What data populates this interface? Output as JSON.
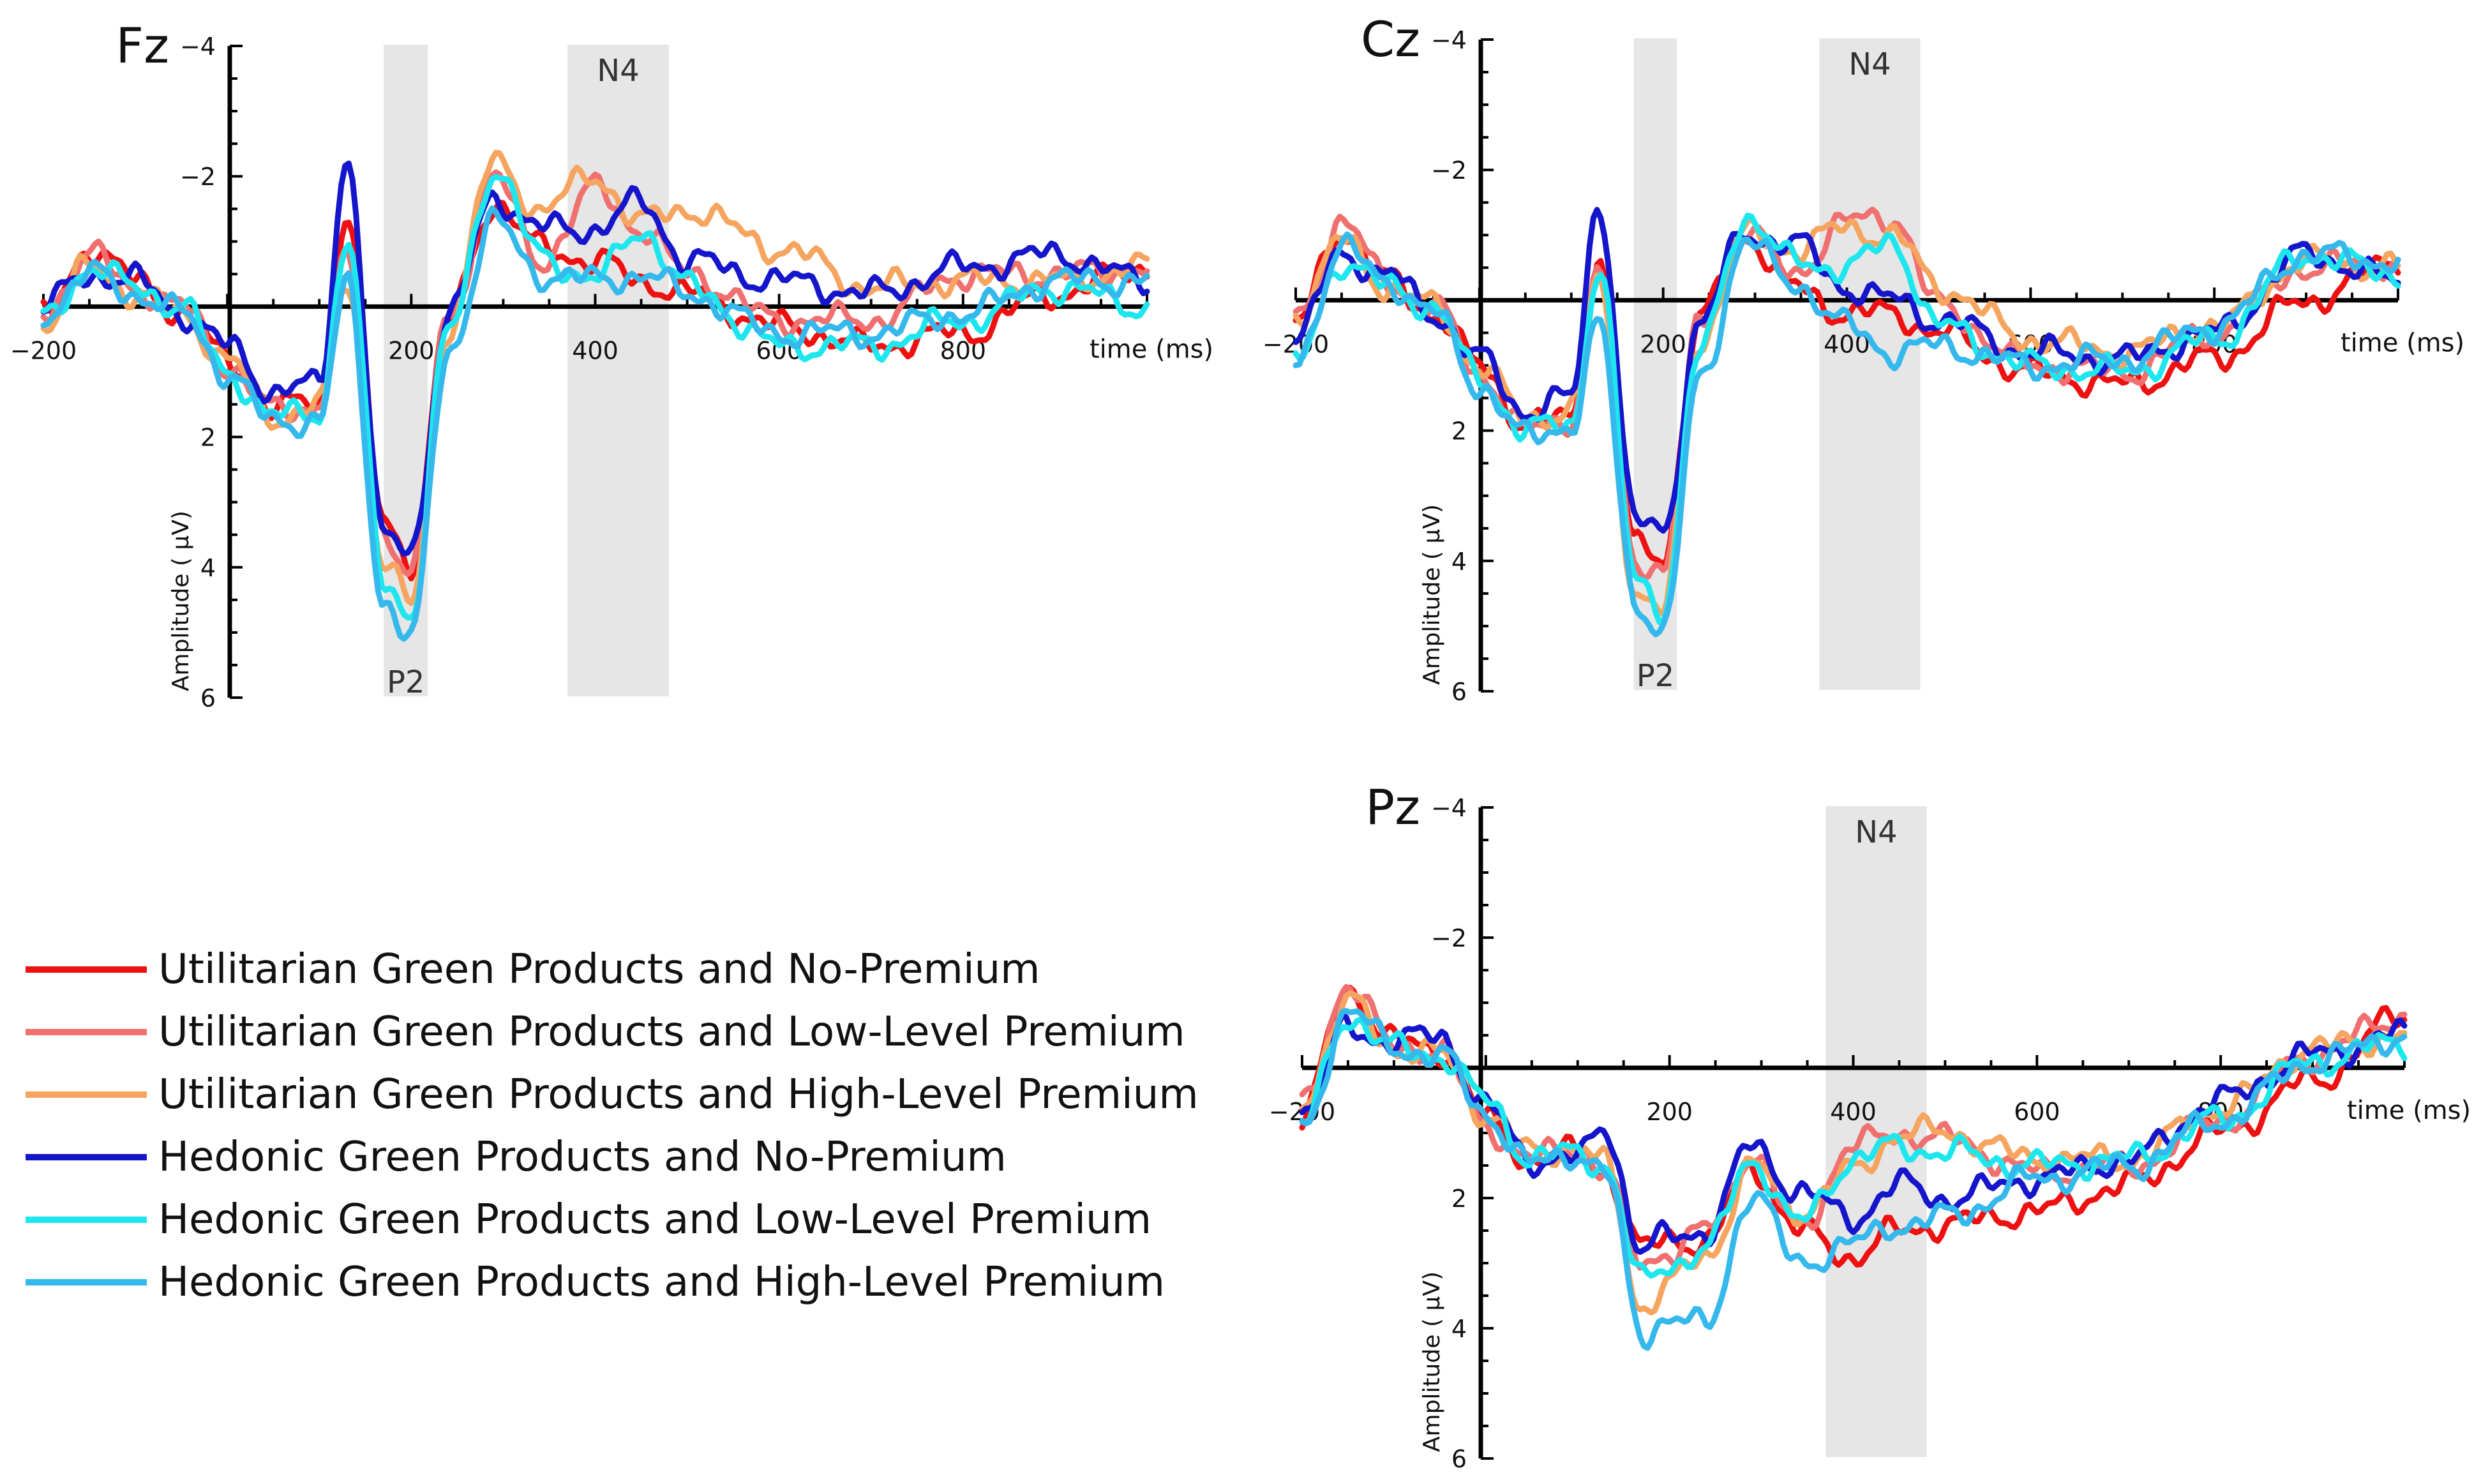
{
  "figure_title": "",
  "legend": [
    {
      "label": "Utilitarian Green Products and No-Premium",
      "color": "#ee1111"
    },
    {
      "label": "Utilitarian Green Products and Low-Level Premium",
      "color": "#f07070"
    },
    {
      "label": "Utilitarian Green Products and High-Level Premium",
      "color": "#f5a560"
    },
    {
      "label": "Hedonic Green Products and No-Premium",
      "color": "#1515cc"
    },
    {
      "label": "Hedonic Green Products and Low-Level Premium",
      "color": "#1ee6ee"
    },
    {
      "label": "Hedonic Green Products and High-Level Premium",
      "color": "#35b8ec"
    }
  ],
  "chart_data": [
    {
      "type": "line",
      "title": "Fz",
      "xlabel": "time (ms)",
      "ylabel": "Amplitude ( μV)",
      "xlim": [
        -200,
        1000
      ],
      "ylim": [
        -4,
        6
      ],
      "y_inverted": true,
      "x_ticks": [
        -200,
        200,
        400,
        600,
        800
      ],
      "y_ticks": [
        -4,
        -2,
        2,
        4,
        6
      ],
      "grid": false,
      "shaded_windows": [
        {
          "label": "P2",
          "x_start": 170,
          "x_end": 218,
          "label_position": "bottom"
        },
        {
          "label": "N4",
          "x_start": 370,
          "x_end": 480,
          "label_position": "top"
        }
      ],
      "x": [
        -200,
        -150,
        -100,
        -50,
        0,
        50,
        100,
        130,
        170,
        200,
        240,
        290,
        340,
        400,
        450,
        500,
        600,
        700,
        800,
        900,
        1000
      ],
      "series": [
        {
          "name": "Utilitarian Green Products and No-Premium",
          "values": [
            0.2,
            -0.9,
            -0.4,
            0.1,
            0.8,
            1.6,
            1.4,
            -1.4,
            3.3,
            3.9,
            0.2,
            -1.6,
            -0.9,
            -0.7,
            -0.4,
            -0.2,
            0.3,
            0.6,
            0.4,
            -0.2,
            -0.6
          ]
        },
        {
          "name": "Utilitarian Green Products and Low-Level Premium",
          "values": [
            0.1,
            -0.8,
            -0.3,
            0.0,
            0.9,
            1.6,
            1.5,
            -0.7,
            3.4,
            4.1,
            0.2,
            -2.0,
            -0.7,
            -1.8,
            -1.2,
            -0.5,
            0.2,
            0.2,
            -0.5,
            -0.5,
            -0.6
          ]
        },
        {
          "name": "Utilitarian Green Products and High-Level Premium",
          "values": [
            0.3,
            -0.6,
            -0.2,
            0.1,
            0.8,
            1.7,
            1.5,
            -0.4,
            3.9,
            4.6,
            0.3,
            -2.2,
            -1.5,
            -2.0,
            -1.3,
            -1.5,
            -0.9,
            -0.3,
            -0.4,
            -0.4,
            -0.6
          ]
        },
        {
          "name": "Hedonic Green Products and No-Premium",
          "values": [
            0.0,
            -0.5,
            -0.4,
            0.1,
            0.6,
            1.3,
            1.2,
            -2.3,
            3.6,
            3.7,
            0.2,
            -1.7,
            -1.2,
            -1.2,
            -1.6,
            -0.7,
            -0.4,
            -0.2,
            -0.6,
            -0.8,
            -0.4
          ]
        },
        {
          "name": "Hedonic Green Products and Low-Level Premium",
          "values": [
            0.2,
            -0.6,
            -0.3,
            0.0,
            1.0,
            1.7,
            1.6,
            -1.0,
            4.2,
            4.7,
            0.4,
            -2.1,
            -0.8,
            -0.4,
            -1.2,
            -0.3,
            0.6,
            0.6,
            0.2,
            -0.3,
            0.0
          ]
        },
        {
          "name": "Hedonic Green Products and High-Level Premium",
          "values": [
            0.1,
            -0.5,
            -0.2,
            0.1,
            1.0,
            1.8,
            1.7,
            -0.3,
            4.5,
            5.1,
            0.7,
            -1.3,
            -0.5,
            -0.4,
            -0.5,
            -0.2,
            0.4,
            0.4,
            0.1,
            -0.4,
            -0.4
          ]
        }
      ]
    },
    {
      "type": "line",
      "title": "Cz",
      "xlabel": "time (ms)",
      "ylabel": "Amplitude ( μV)",
      "xlim": [
        -200,
        1000
      ],
      "ylim": [
        -4,
        6
      ],
      "y_inverted": true,
      "x_ticks": [
        -200,
        200,
        400,
        600,
        800
      ],
      "y_ticks": [
        -4,
        -2,
        2,
        4,
        6
      ],
      "grid": false,
      "shaded_windows": [
        {
          "label": "P2",
          "x_start": 168,
          "x_end": 215,
          "label_position": "bottom"
        },
        {
          "label": "N4",
          "x_start": 370,
          "x_end": 480,
          "label_position": "top"
        }
      ],
      "x": [
        -200,
        -150,
        -100,
        -50,
        0,
        50,
        100,
        130,
        170,
        200,
        240,
        290,
        340,
        400,
        450,
        500,
        600,
        700,
        800,
        900,
        1000
      ],
      "series": [
        {
          "name": "Utilitarian Green Products and No-Premium",
          "values": [
            0.4,
            -1.1,
            -0.3,
            0.2,
            1.0,
            1.9,
            1.8,
            -0.6,
            3.8,
            3.9,
            0.3,
            -1.0,
            -0.2,
            0.2,
            0.2,
            0.5,
            1.1,
            1.3,
            0.9,
            0.0,
            -0.6
          ]
        },
        {
          "name": "Utilitarian Green Products and Low-Level Premium",
          "values": [
            0.3,
            -1.2,
            -0.3,
            0.1,
            1.1,
            2.0,
            1.8,
            -0.4,
            4.0,
            4.1,
            0.4,
            -1.1,
            -0.4,
            -1.2,
            -1.3,
            0.1,
            1.0,
            1.1,
            0.5,
            -0.5,
            -0.6
          ]
        },
        {
          "name": "Utilitarian Green Products and High-Level Premium",
          "values": [
            0.2,
            -0.9,
            -0.2,
            0.1,
            1.0,
            1.8,
            1.7,
            -0.3,
            4.5,
            4.8,
            0.6,
            -1.0,
            -0.8,
            -1.1,
            -1.0,
            -0.2,
            0.6,
            0.8,
            0.4,
            -0.6,
            -0.5
          ]
        },
        {
          "name": "Hedonic Green Products and No-Premium",
          "values": [
            0.6,
            -0.7,
            -0.4,
            0.2,
            0.9,
            1.7,
            1.5,
            -1.5,
            3.4,
            3.6,
            0.3,
            -1.0,
            -0.9,
            -0.2,
            0.0,
            0.3,
            0.8,
            0.9,
            0.5,
            -0.7,
            -0.3
          ]
        },
        {
          "name": "Hedonic Green Products and Low-Level Premium",
          "values": [
            1.0,
            -0.6,
            -0.2,
            0.1,
            1.2,
            2.0,
            1.9,
            -0.5,
            4.3,
            4.7,
            0.8,
            -1.3,
            -0.6,
            -0.5,
            -0.9,
            0.4,
            1.0,
            1.1,
            0.6,
            -0.7,
            -0.4
          ]
        },
        {
          "name": "Hedonic Green Products and High-Level Premium",
          "values": [
            0.9,
            -0.8,
            -0.3,
            0.2,
            1.3,
            2.1,
            1.9,
            0.4,
            4.6,
            5.1,
            1.2,
            -0.9,
            -0.3,
            0.4,
            0.8,
            0.7,
            1.0,
            0.9,
            0.4,
            -0.7,
            -0.6
          ]
        }
      ]
    },
    {
      "type": "line",
      "title": "Pz",
      "xlabel": "time (ms)",
      "ylabel": "Amplitude ( μV)",
      "xlim": [
        -200,
        1000
      ],
      "ylim": [
        -4,
        6
      ],
      "y_inverted": true,
      "x_ticks": [
        -200,
        200,
        400,
        600,
        800
      ],
      "y_ticks": [
        -4,
        -2,
        2,
        4,
        6
      ],
      "grid": false,
      "shaded_windows": [
        {
          "label": "N4",
          "x_start": 370,
          "x_end": 480,
          "label_position": "top"
        }
      ],
      "x": [
        -200,
        -150,
        -100,
        -50,
        0,
        50,
        100,
        130,
        170,
        200,
        240,
        290,
        340,
        400,
        450,
        500,
        600,
        700,
        800,
        900,
        1000
      ],
      "series": [
        {
          "name": "Utilitarian Green Products and No-Premium",
          "values": [
            0.8,
            -1.2,
            -0.4,
            -0.3,
            0.8,
            1.4,
            1.3,
            1.6,
            2.8,
            2.6,
            2.7,
            1.5,
            2.5,
            2.9,
            2.5,
            2.4,
            2.2,
            1.8,
            1.0,
            0.2,
            -0.8
          ]
        },
        {
          "name": "Utilitarian Green Products and Low-Level Premium",
          "values": [
            0.6,
            -1.3,
            -0.3,
            -0.3,
            0.9,
            1.4,
            1.2,
            1.6,
            3.0,
            2.8,
            2.5,
            1.3,
            2.5,
            1.2,
            1.0,
            1.1,
            1.6,
            1.5,
            0.8,
            -0.2,
            -0.8
          ]
        },
        {
          "name": "Utilitarian Green Products and High-Level Premium",
          "values": [
            0.5,
            -1.0,
            -0.3,
            -0.2,
            0.7,
            1.3,
            1.2,
            1.5,
            3.7,
            3.3,
            2.9,
            1.5,
            2.2,
            1.6,
            1.0,
            1.0,
            1.4,
            1.4,
            0.6,
            -0.3,
            -0.5
          ]
        },
        {
          "name": "Hedonic Green Products and No-Premium",
          "values": [
            0.7,
            -0.6,
            -0.4,
            -0.5,
            0.6,
            1.4,
            1.4,
            0.9,
            2.8,
            2.6,
            2.5,
            1.2,
            1.9,
            2.3,
            1.8,
            2.0,
            1.7,
            1.4,
            0.5,
            -0.2,
            -0.5
          ]
        },
        {
          "name": "Hedonic Green Products and Low-Level Premium",
          "values": [
            0.9,
            -0.8,
            -0.3,
            -0.2,
            0.5,
            1.4,
            1.3,
            1.5,
            3.3,
            3.0,
            2.8,
            1.4,
            2.4,
            1.4,
            1.2,
            1.3,
            1.5,
            1.4,
            0.8,
            -0.1,
            -0.4
          ]
        },
        {
          "name": "Hedonic Green Products and High-Level Premium",
          "values": [
            1.0,
            -0.9,
            -0.3,
            -0.2,
            0.7,
            1.5,
            1.3,
            1.6,
            4.1,
            3.8,
            4.0,
            1.9,
            3.0,
            2.7,
            2.4,
            2.3,
            1.7,
            1.5,
            0.8,
            -0.1,
            -0.5
          ]
        }
      ]
    }
  ]
}
